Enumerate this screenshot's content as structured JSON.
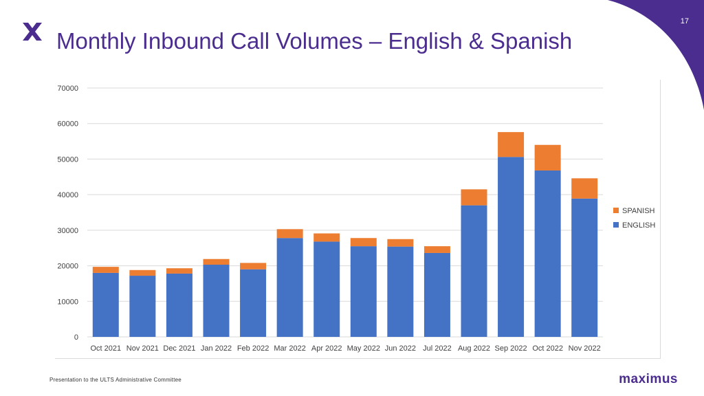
{
  "slide": {
    "page_number": "17",
    "title": "Monthly Inbound Call Volumes – English & Spanish",
    "footer": "Presentation to the ULTS Administrative Committee",
    "brand": "maximus"
  },
  "colors": {
    "title": "#4b2d8f",
    "accent_purple": "#4b2d8f",
    "english": "#4472c4",
    "spanish": "#ed7d31"
  },
  "icons": {
    "logo": "x-logo-icon",
    "corner": "purple-corner-swoosh"
  },
  "chart_data": {
    "type": "bar",
    "stacked": true,
    "categories": [
      "Oct 2021",
      "Nov 2021",
      "Dec 2021",
      "Jan 2022",
      "Feb 2022",
      "Mar 2022",
      "Apr 2022",
      "May 2022",
      "Jun 2022",
      "Jul 2022",
      "Aug 2022",
      "Sep 2022",
      "Oct 2022",
      "Nov 2022"
    ],
    "series": [
      {
        "name": "ENGLISH",
        "color": "#4472c4",
        "values": [
          18000,
          17200,
          17800,
          20300,
          19000,
          27800,
          26800,
          25500,
          25400,
          23600,
          37000,
          50600,
          46800,
          38900
        ]
      },
      {
        "name": "SPANISH",
        "color": "#ed7d31",
        "values": [
          1700,
          1600,
          1500,
          1600,
          1800,
          2500,
          2300,
          2300,
          2100,
          1900,
          4500,
          7000,
          7200,
          5700
        ]
      }
    ],
    "yticks": [
      "0",
      "10000",
      "20000",
      "30000",
      "40000",
      "50000",
      "60000",
      "70000"
    ],
    "ylim": [
      0,
      70000
    ],
    "grid": true,
    "legend": {
      "position": "right",
      "entries": [
        "SPANISH",
        "ENGLISH"
      ]
    },
    "title": "",
    "xlabel": "",
    "ylabel": ""
  }
}
